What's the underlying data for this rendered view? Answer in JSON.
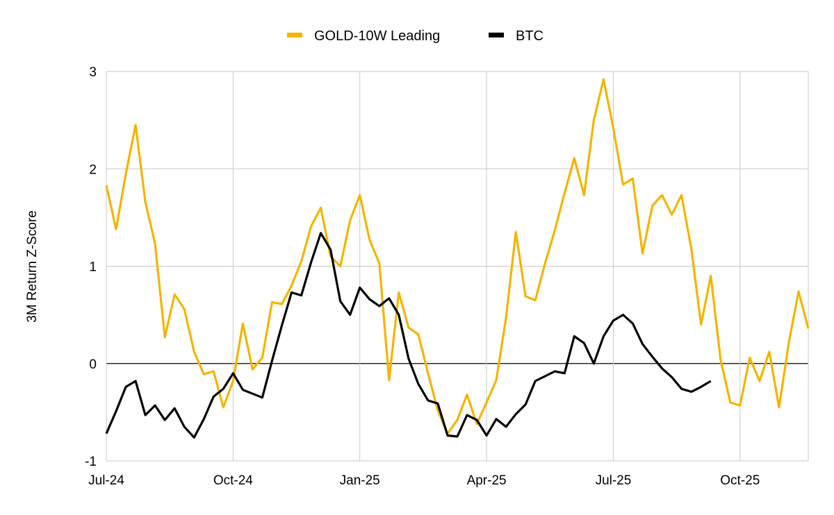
{
  "chart_data": {
    "type": "line",
    "title": "",
    "xlabel": "",
    "ylabel": "3M Return Z-Score",
    "ylim": [
      -1,
      3
    ],
    "xlim": [
      0,
      72
    ],
    "y_ticks": [
      -1,
      0,
      1,
      2,
      3
    ],
    "x_ticks": [
      {
        "index": 0,
        "label": "Jul-24"
      },
      {
        "index": 13,
        "label": "Oct-24"
      },
      {
        "index": 26,
        "label": "Jan-25"
      },
      {
        "index": 39,
        "label": "Apr-25"
      },
      {
        "index": 52,
        "label": "Jul-25"
      },
      {
        "index": 65,
        "label": "Oct-25"
      }
    ],
    "grid": true,
    "legend_position": "top-center",
    "series": [
      {
        "name": "GOLD-10W Leading",
        "color": "#F4B400",
        "values": [
          1.83,
          1.38,
          1.95,
          2.45,
          1.66,
          1.23,
          0.27,
          0.71,
          0.56,
          0.12,
          -0.11,
          -0.08,
          -0.45,
          -0.18,
          0.41,
          -0.06,
          0.06,
          0.63,
          0.61,
          0.8,
          1.05,
          1.41,
          1.6,
          1.1,
          1.0,
          1.47,
          1.73,
          1.27,
          1.03,
          -0.17,
          0.73,
          0.37,
          0.3,
          -0.1,
          -0.48,
          -0.72,
          -0.58,
          -0.32,
          -0.62,
          -0.4,
          -0.17,
          0.47,
          1.35,
          0.69,
          0.65,
          1.03,
          1.37,
          1.75,
          2.11,
          1.73,
          2.5,
          2.92,
          2.42,
          1.84,
          1.9,
          1.13,
          1.62,
          1.73,
          1.53,
          1.73,
          1.18,
          0.4,
          0.9,
          0.04,
          -0.4,
          -0.43,
          0.06,
          -0.18,
          0.12,
          -0.45,
          0.21,
          0.74,
          0.36
        ]
      },
      {
        "name": "BTC",
        "color": "#000000",
        "values": [
          -0.72,
          -0.49,
          -0.24,
          -0.18,
          -0.53,
          -0.43,
          -0.58,
          -0.46,
          -0.65,
          -0.76,
          -0.57,
          -0.34,
          -0.26,
          -0.1,
          -0.27,
          -0.31,
          -0.35,
          0.03,
          0.39,
          0.73,
          0.7,
          1.04,
          1.34,
          1.17,
          0.64,
          0.5,
          0.78,
          0.66,
          0.59,
          0.67,
          0.5,
          0.05,
          -0.21,
          -0.38,
          -0.41,
          -0.74,
          -0.75,
          -0.53,
          -0.58,
          -0.74,
          -0.57,
          -0.65,
          -0.52,
          -0.42,
          -0.18,
          -0.13,
          -0.08,
          -0.1,
          0.28,
          0.21,
          0.0,
          0.28,
          0.44,
          0.5,
          0.41,
          0.2,
          0.07,
          -0.05,
          -0.14,
          -0.26,
          -0.29,
          -0.24,
          -0.18
        ]
      }
    ]
  }
}
